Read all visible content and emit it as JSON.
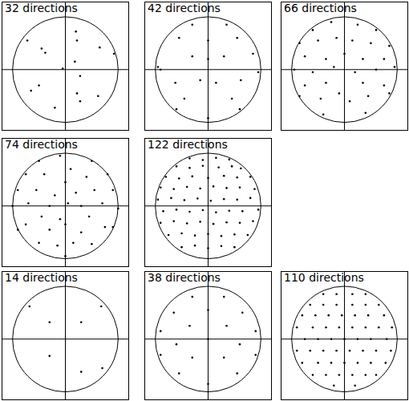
{
  "chart_data": [
    {
      "type": "scatter",
      "title": "32 directions",
      "color": "#000000",
      "tick_labels": false,
      "xlim": [
        -1.2,
        1.2
      ],
      "ylim": [
        -1.15,
        1.28
      ],
      "x": [
        -0.72,
        -0.45,
        -0.38,
        0.2,
        0.22,
        0.65,
        0.92,
        0.18,
        -0.05,
        0.28,
        -0.5,
        -0.65,
        -0.2,
        0.22,
        0.28,
        0.62
      ],
      "y": [
        0.55,
        0.4,
        0.32,
        0.72,
        0.55,
        0.42,
        0.3,
        0.15,
        0.02,
        -0.12,
        -0.3,
        -0.4,
        -0.72,
        -0.45,
        -0.6,
        -0.5
      ]
    },
    {
      "type": "scatter",
      "title": "42 directions",
      "color": "#000000",
      "tick_labels": false,
      "xlim": [
        -1.2,
        1.2
      ],
      "ylim": [
        -1.15,
        1.28
      ],
      "x": [
        -0.9,
        -0.55,
        -0.3,
        0.0,
        0.35,
        0.55,
        0.85,
        -0.62,
        -0.3,
        0.0,
        0.3,
        0.62,
        -0.95,
        0.95,
        -0.45,
        -0.15,
        0.15,
        0.45,
        -0.6,
        0.0,
        0.6
      ],
      "y": [
        0.0,
        0.6,
        0.85,
        0.55,
        0.85,
        0.6,
        0.3,
        -0.25,
        0.25,
        0.2,
        0.25,
        -0.2,
        0.05,
        -0.05,
        -0.55,
        -0.2,
        -0.25,
        -0.55,
        -0.75,
        -0.92,
        -0.75
      ]
    },
    {
      "type": "scatter",
      "title": "66 directions",
      "color": "#000000",
      "tick_labels": false,
      "xlim": [
        -1.2,
        1.2
      ],
      "ylim": [
        -1.15,
        1.28
      ],
      "x": [
        -0.6,
        -0.25,
        0.25,
        0.6,
        -0.85,
        -0.5,
        -0.15,
        0.15,
        0.5,
        0.85,
        -0.75,
        -0.35,
        0.0,
        0.35,
        0.75,
        -0.95,
        -0.6,
        -0.2,
        0.2,
        0.6,
        0.95,
        -0.75,
        -0.35,
        0.35,
        0.75,
        -0.85,
        -0.45,
        -0.1,
        0.1,
        0.45,
        0.85,
        -0.4,
        0.4
      ],
      "y": [
        0.75,
        0.9,
        0.85,
        0.75,
        0.5,
        0.55,
        0.6,
        0.55,
        0.5,
        0.45,
        0.25,
        0.2,
        0.3,
        0.2,
        0.2,
        0.0,
        -0.05,
        0.05,
        -0.05,
        0.0,
        0.05,
        -0.3,
        -0.25,
        -0.25,
        -0.3,
        -0.5,
        -0.55,
        -0.45,
        -0.6,
        -0.5,
        -0.45,
        -0.85,
        -0.82
      ]
    },
    {
      "type": "scatter",
      "title": "74 directions",
      "color": "#000000",
      "tick_labels": false,
      "xlim": [
        -1.2,
        1.2
      ],
      "ylim": [
        -1.15,
        1.28
      ],
      "x": [
        -0.5,
        -0.1,
        0.1,
        0.5,
        -0.75,
        -0.4,
        0.0,
        0.4,
        0.8,
        -0.9,
        -0.55,
        -0.2,
        0.2,
        0.55,
        0.9,
        -0.7,
        -0.3,
        0.05,
        0.3,
        0.7,
        -1.0,
        -0.45,
        -0.1,
        0.45,
        1.0,
        -0.75,
        -0.3,
        0.0,
        0.3,
        0.75,
        -0.9,
        -0.5,
        -0.15,
        0.15,
        0.5,
        0.9,
        0.0
      ],
      "y": [
        0.85,
        0.95,
        0.7,
        0.85,
        0.6,
        0.6,
        0.45,
        0.55,
        0.6,
        0.3,
        0.3,
        0.2,
        0.25,
        0.3,
        0.3,
        0.05,
        0.0,
        0.05,
        0.0,
        0.05,
        0.0,
        -0.2,
        -0.25,
        -0.2,
        -0.05,
        -0.35,
        -0.45,
        -0.35,
        -0.5,
        -0.4,
        -0.45,
        -0.7,
        -0.75,
        -0.7,
        -0.72,
        -0.4,
        -0.95
      ]
    },
    {
      "type": "scatter",
      "title": "122 directions",
      "color": "#000000",
      "tick_labels": false,
      "xlim": [
        -1.2,
        1.2
      ],
      "ylim": [
        -1.15,
        1.28
      ],
      "x": [
        -0.35,
        -0.1,
        0.15,
        0.4,
        -0.6,
        -0.35,
        -0.1,
        0.2,
        0.45,
        0.62,
        -0.8,
        -0.55,
        -0.3,
        0.0,
        0.3,
        0.55,
        0.8,
        -0.9,
        -0.65,
        -0.4,
        -0.15,
        0.1,
        0.35,
        0.6,
        0.88,
        -0.95,
        -0.7,
        -0.45,
        -0.2,
        0.05,
        0.3,
        0.55,
        0.8,
        -0.85,
        -0.6,
        -0.35,
        -0.1,
        0.15,
        0.4,
        0.65,
        0.95,
        -0.9,
        -0.65,
        -0.4,
        -0.15,
        0.1,
        0.35,
        0.6,
        0.85,
        -0.75,
        -0.5,
        -0.25,
        0.0,
        0.25,
        0.5,
        0.75,
        -0.5,
        -0.25,
        0.0,
        0.25,
        0.5
      ],
      "y": [
        0.9,
        0.87,
        0.91,
        0.88,
        0.75,
        0.72,
        0.76,
        0.73,
        0.75,
        0.71,
        0.55,
        0.52,
        0.56,
        0.53,
        0.57,
        0.54,
        0.55,
        0.35,
        0.32,
        0.36,
        0.33,
        0.37,
        0.34,
        0.35,
        0.32,
        0.12,
        0.15,
        0.11,
        0.14,
        0.1,
        0.13,
        0.12,
        0.15,
        -0.1,
        -0.07,
        -0.11,
        -0.08,
        -0.12,
        -0.09,
        -0.1,
        -0.07,
        -0.32,
        -0.29,
        -0.33,
        -0.3,
        -0.34,
        -0.31,
        -0.32,
        -0.29,
        -0.55,
        -0.52,
        -0.56,
        -0.53,
        -0.57,
        -0.54,
        -0.55,
        -0.78,
        -0.75,
        -0.8,
        -0.76,
        -0.78
      ]
    },
    {
      "type": "scatter",
      "title": "14 directions",
      "color": "#000000",
      "tick_labels": false,
      "xlim": [
        -1.2,
        1.2
      ],
      "ylim": [
        -1.15,
        1.28
      ],
      "x": [
        -0.68,
        -0.3,
        0.3,
        0.68,
        -0.3,
        0.3,
        0.7
      ],
      "y": [
        0.62,
        0.32,
        0.32,
        0.62,
        -0.32,
        -0.62,
        -0.55
      ]
    },
    {
      "type": "scatter",
      "title": "38 directions",
      "color": "#000000",
      "tick_labels": false,
      "xlim": [
        -1.2,
        1.2
      ],
      "ylim": [
        -1.15,
        1.28
      ],
      "x": [
        -0.3,
        0.3,
        -0.65,
        0.0,
        0.65,
        -0.9,
        -0.35,
        0.35,
        0.9,
        -0.6,
        0.0,
        0.6,
        -0.9,
        -0.3,
        0.3,
        0.9,
        -0.55,
        0.0,
        0.55
      ],
      "y": [
        0.8,
        0.8,
        0.5,
        0.55,
        0.5,
        0.15,
        0.25,
        0.25,
        0.15,
        -0.1,
        0.0,
        -0.1,
        -0.3,
        -0.35,
        -0.35,
        -0.3,
        -0.65,
        -0.85,
        -0.65
      ]
    },
    {
      "type": "scatter",
      "title": "110 directions",
      "color": "#000000",
      "tick_labels": false,
      "xlim": [
        -1.2,
        1.2
      ],
      "ylim": [
        -1.15,
        1.28
      ],
      "x": [
        -0.4,
        -0.15,
        0.15,
        0.4,
        -0.65,
        -0.4,
        -0.15,
        0.15,
        0.4,
        0.65,
        -0.8,
        -0.55,
        -0.3,
        -0.05,
        0.2,
        0.45,
        0.75,
        -0.9,
        -0.6,
        -0.35,
        -0.1,
        0.15,
        0.4,
        0.65,
        0.9,
        -0.75,
        -0.5,
        -0.25,
        0.0,
        0.25,
        0.5,
        0.8,
        -0.9,
        -0.65,
        -0.4,
        -0.15,
        0.1,
        0.35,
        0.6,
        0.88,
        -0.8,
        -0.5,
        -0.25,
        0.0,
        0.25,
        0.5,
        0.78,
        -0.6,
        -0.35,
        -0.1,
        0.15,
        0.4,
        0.6,
        -0.2,
        0.2
      ],
      "y": [
        0.85,
        0.85,
        0.85,
        0.85,
        0.65,
        0.65,
        0.65,
        0.65,
        0.65,
        0.65,
        0.45,
        0.45,
        0.45,
        0.45,
        0.45,
        0.45,
        0.45,
        0.22,
        0.22,
        0.22,
        0.22,
        0.22,
        0.22,
        0.22,
        0.22,
        0.0,
        0.0,
        0.0,
        0.0,
        0.0,
        0.0,
        0.0,
        -0.22,
        -0.22,
        -0.22,
        -0.22,
        -0.22,
        -0.22,
        -0.22,
        -0.22,
        -0.45,
        -0.45,
        -0.45,
        -0.45,
        -0.45,
        -0.45,
        -0.45,
        -0.68,
        -0.68,
        -0.68,
        -0.68,
        -0.68,
        -0.68,
        -0.88,
        -0.88
      ]
    }
  ]
}
